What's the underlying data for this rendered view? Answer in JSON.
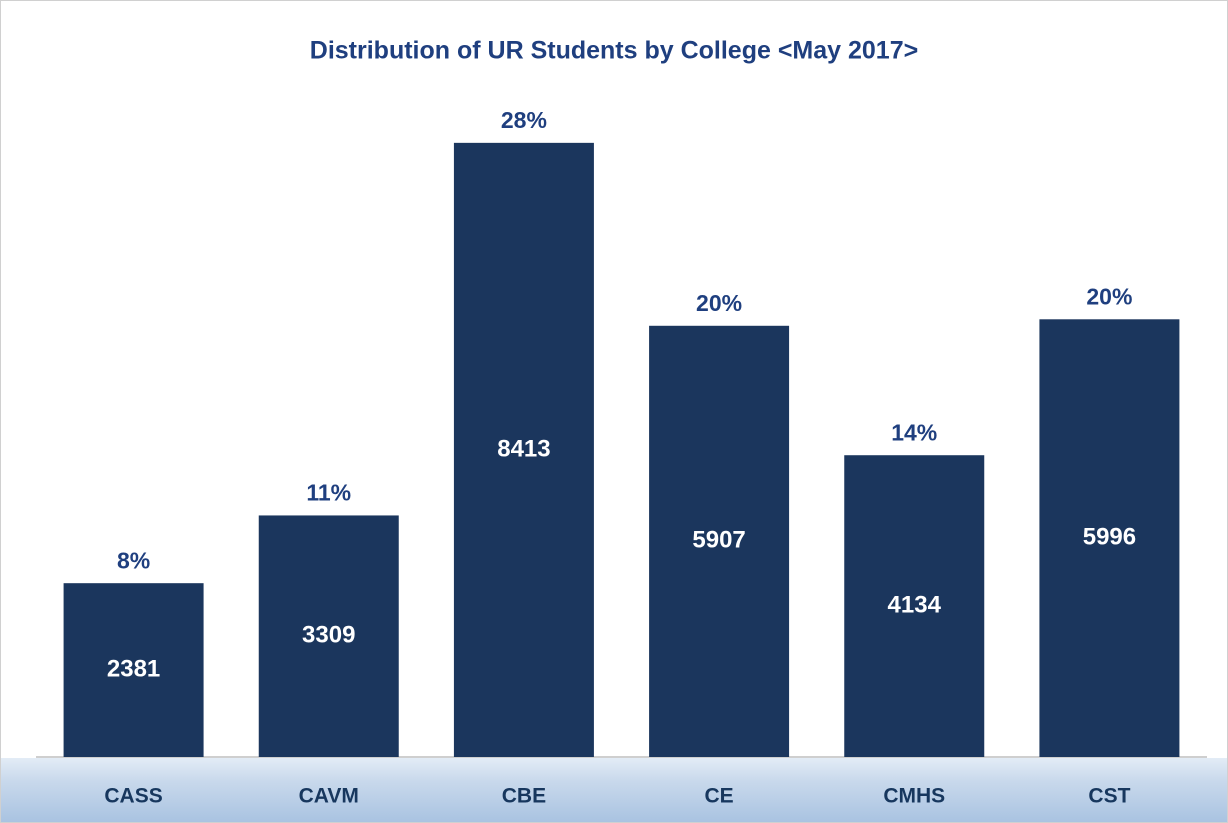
{
  "chart_data": {
    "type": "bar",
    "title": "Distribution of UR Students by College <May 2017>",
    "categories": [
      "CASS",
      "CAVM",
      "CBE",
      "CE",
      "CMHS",
      "CST"
    ],
    "values": [
      2381,
      3309,
      8413,
      5907,
      4134,
      5996
    ],
    "percent_labels": [
      "8%",
      "11%",
      "28%",
      "20%",
      "14%",
      "20%"
    ],
    "color": "#1b365d",
    "ylim": [
      0,
      9000
    ]
  }
}
